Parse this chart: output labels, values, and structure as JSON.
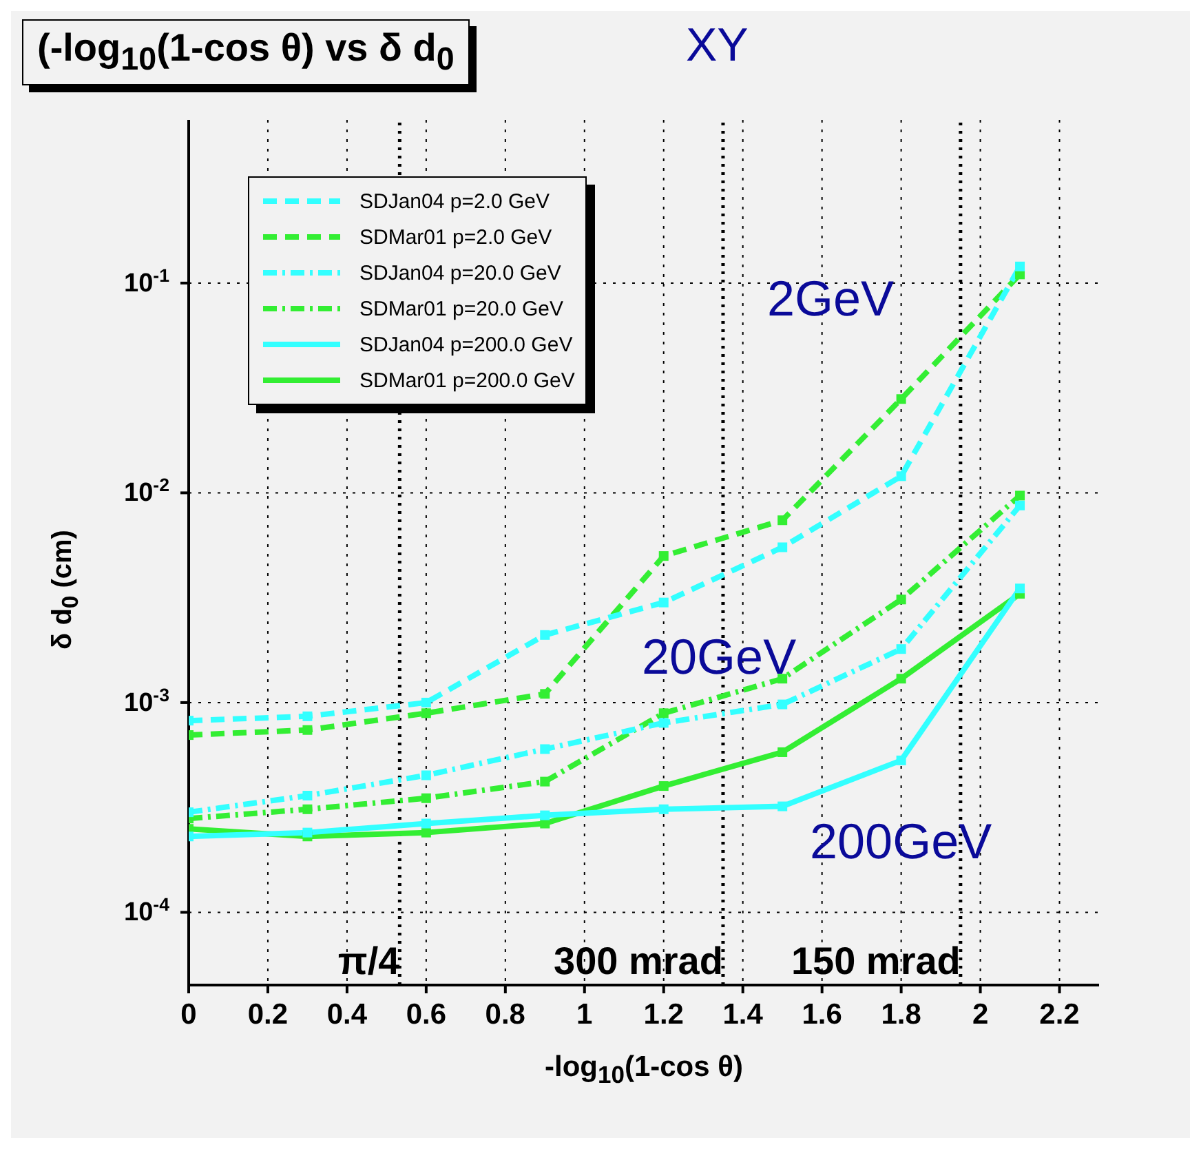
{
  "chart_data": {
    "type": "line",
    "title": "(-log$_{10}$(1-cos θ) vs δ d$_{0}$",
    "xlabel": "-log$_{10}$(1-cos θ)",
    "ylabel": "δ d$_{0}$ (cm)",
    "annotations": [
      "XY",
      "2GeV",
      "20GeV",
      "200GeV"
    ],
    "x": [
      0,
      0.3,
      0.6,
      0.9,
      1.2,
      1.5,
      1.8,
      2.1
    ],
    "series": [
      {
        "name": "SDJan04 p=2.0 GeV",
        "color": "#33ffff",
        "line_style": "dashed",
        "values": [
          0.00082,
          0.00086,
          0.001,
          0.0021,
          0.003,
          0.0055,
          0.012,
          0.12
        ]
      },
      {
        "name": "SDMar01 p=2.0 GeV",
        "color": "#33ee33",
        "line_style": "dashed",
        "values": [
          0.0007,
          0.00074,
          0.00089,
          0.0011,
          0.005,
          0.0074,
          0.028,
          0.11
        ]
      },
      {
        "name": "SDJan04 p=20.0 GeV",
        "color": "#33ffff",
        "line_style": "dashdot",
        "values": [
          0.0003,
          0.00036,
          0.00045,
          0.0006,
          0.0008,
          0.00098,
          0.0018,
          0.0087
        ]
      },
      {
        "name": "SDMar01 p=20.0 GeV",
        "color": "#33ee33",
        "line_style": "dashdot",
        "values": [
          0.00028,
          0.00031,
          0.00035,
          0.00042,
          0.00089,
          0.0013,
          0.0031,
          0.0097
        ]
      },
      {
        "name": "SDJan04 p=200.0 GeV",
        "color": "#33ffff",
        "line_style": "solid",
        "values": [
          0.00023,
          0.00024,
          0.000265,
          0.00029,
          0.00031,
          0.00032,
          0.00053,
          0.0035
        ]
      },
      {
        "name": "SDMar01 p=200.0 GeV",
        "color": "#33ee33",
        "line_style": "solid",
        "values": [
          0.00025,
          0.00023,
          0.00024,
          0.000265,
          0.0004,
          0.00058,
          0.0013,
          0.0033
        ]
      }
    ],
    "xlim": [
      0,
      2.3
    ],
    "xticks": [
      0,
      0.2,
      0.4,
      0.6,
      0.8,
      1,
      1.2,
      1.4,
      1.6,
      1.8,
      2,
      2.2
    ],
    "ylim": [
      4.5e-05,
      0.6
    ],
    "log": "y",
    "yticks": [
      {
        "value": 0.0001,
        "label": "10$^{-4}$"
      },
      {
        "value": 0.001,
        "label": "10$^{-3}$"
      },
      {
        "value": 0.01,
        "label": "10$^{-2}$"
      },
      {
        "value": 0.1,
        "label": "10$^{-1}$"
      }
    ],
    "ref_lines": [
      {
        "axis": "x",
        "value": 0.533,
        "label": "π/4",
        "line_style": "dotted",
        "color": "#000000"
      },
      {
        "axis": "x",
        "value": 1.35,
        "label": "300 mrad",
        "line_style": "dotted",
        "color": "#000000"
      },
      {
        "axis": "x",
        "value": 1.95,
        "label": "150 mrad",
        "line_style": "dotted",
        "color": "#000000"
      }
    ],
    "grid": true,
    "legend": "top left",
    "marker": "square"
  }
}
